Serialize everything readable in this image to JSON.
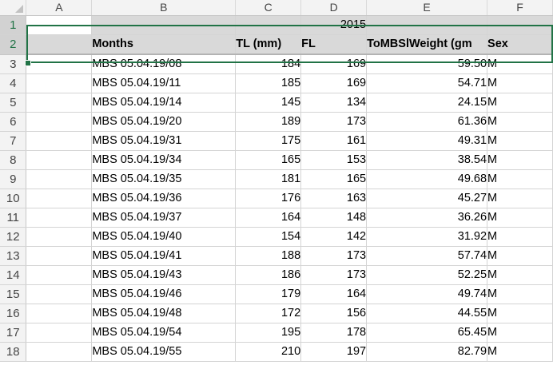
{
  "columns": [
    "A",
    "B",
    "C",
    "D",
    "E",
    "F"
  ],
  "row1": {
    "num": "1",
    "year": "2015"
  },
  "row2": {
    "num": "2",
    "months": "Months",
    "tl": "TL (mm)",
    "fl": "FL",
    "weight": "ToMBSlWeight (gm",
    "sex": "Sex"
  },
  "rows": [
    {
      "num": "3",
      "id": "MBS 05.04.19/08",
      "tl": "184",
      "fl": "169",
      "weight": "59.50",
      "sex": "M"
    },
    {
      "num": "4",
      "id": "MBS 05.04.19/11",
      "tl": "185",
      "fl": "169",
      "weight": "54.71",
      "sex": "M"
    },
    {
      "num": "5",
      "id": "MBS 05.04.19/14",
      "tl": "145",
      "fl": "134",
      "weight": "24.15",
      "sex": "M"
    },
    {
      "num": "6",
      "id": "MBS 05.04.19/20",
      "tl": "189",
      "fl": "173",
      "weight": "61.36",
      "sex": "M"
    },
    {
      "num": "7",
      "id": "MBS 05.04.19/31",
      "tl": "175",
      "fl": "161",
      "weight": "49.31",
      "sex": "M"
    },
    {
      "num": "8",
      "id": "MBS 05.04.19/34",
      "tl": "165",
      "fl": "153",
      "weight": "38.54",
      "sex": "M"
    },
    {
      "num": "9",
      "id": "MBS 05.04.19/35",
      "tl": "181",
      "fl": "165",
      "weight": "49.68",
      "sex": "M"
    },
    {
      "num": "10",
      "id": "MBS 05.04.19/36",
      "tl": "176",
      "fl": "163",
      "weight": "45.27",
      "sex": "M"
    },
    {
      "num": "11",
      "id": "MBS 05.04.19/37",
      "tl": "164",
      "fl": "148",
      "weight": "36.26",
      "sex": "M"
    },
    {
      "num": "12",
      "id": "MBS 05.04.19/40",
      "tl": "154",
      "fl": "142",
      "weight": "31.92",
      "sex": "M"
    },
    {
      "num": "13",
      "id": "MBS 05.04.19/41",
      "tl": "188",
      "fl": "173",
      "weight": "57.74",
      "sex": "M"
    },
    {
      "num": "14",
      "id": "MBS 05.04.19/43",
      "tl": "186",
      "fl": "173",
      "weight": "52.25",
      "sex": "M"
    },
    {
      "num": "15",
      "id": "MBS 05.04.19/46",
      "tl": "179",
      "fl": "164",
      "weight": "49.74",
      "sex": "M"
    },
    {
      "num": "16",
      "id": "MBS 05.04.19/48",
      "tl": "172",
      "fl": "156",
      "weight": "44.55",
      "sex": "M"
    },
    {
      "num": "17",
      "id": "MBS 05.04.19/54",
      "tl": "195",
      "fl": "178",
      "weight": "65.45",
      "sex": "M"
    },
    {
      "num": "18",
      "id": "MBS 05.04.19/55",
      "tl": "210",
      "fl": "197",
      "weight": "82.79",
      "sex": "M"
    }
  ]
}
